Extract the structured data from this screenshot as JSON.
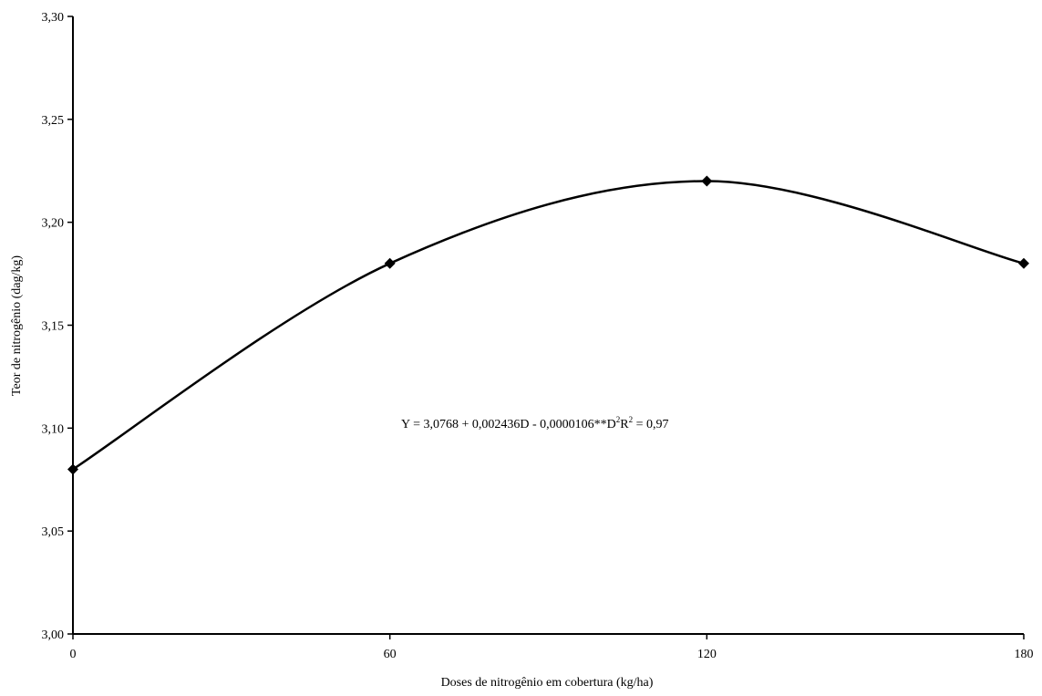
{
  "chart_data": {
    "type": "line",
    "title": "",
    "xlabel": "Doses de nitrogênio em cobertura (kg/ha)",
    "ylabel": "Teor de nitrogênio (dag/kg)",
    "x": [
      0,
      60,
      120,
      180
    ],
    "x_tick_labels": [
      "0",
      "60",
      "120",
      "180"
    ],
    "xlim": [
      0,
      180
    ],
    "ylim": [
      3.0,
      3.3
    ],
    "y_ticks": [
      3.0,
      3.05,
      3.1,
      3.15,
      3.2,
      3.25,
      3.3
    ],
    "y_tick_labels": [
      "3,00",
      "3,05",
      "3,10",
      "3,15",
      "3,20",
      "3,25",
      "3,30"
    ],
    "series": [
      {
        "values": [
          3.08,
          3.18,
          3.22,
          3.18
        ],
        "color": "#000000",
        "marker": "diamond",
        "smooth": true
      }
    ],
    "grid": false,
    "equation": {
      "main": "Y = 3,0768 + 0,002436D - 0,0000106**D",
      "sup1": "2",
      "mid": "R",
      "sup2": "2",
      "tail": " = 0,97"
    }
  }
}
